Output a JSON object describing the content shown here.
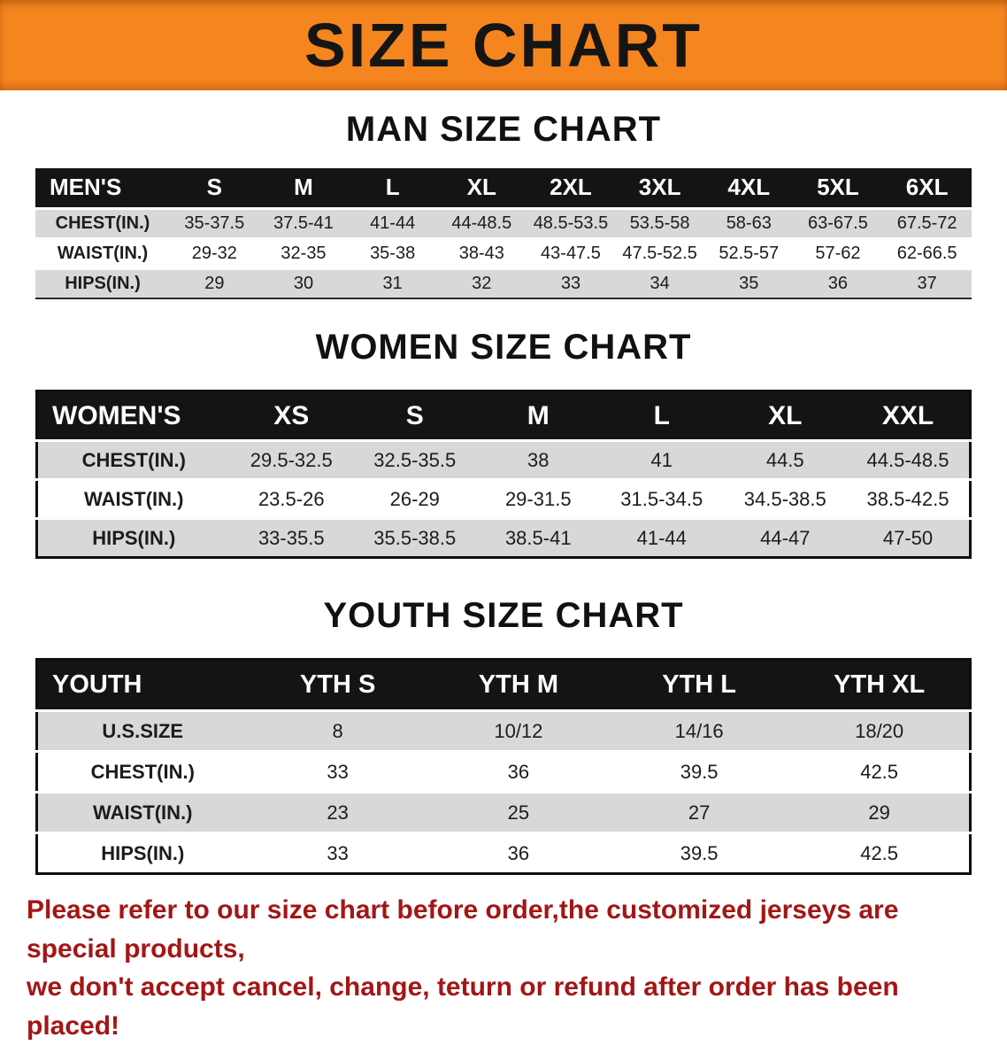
{
  "banner": {
    "title": "SIZE CHART"
  },
  "colors": {
    "banner_bg": "#f5851f",
    "header_row_bg": "#141414",
    "header_row_text": "#ffffff",
    "alt_row_bg": "#d8d8d8",
    "footer_text": "#a31616"
  },
  "men": {
    "heading": "MAN SIZE CHART",
    "table": {
      "header": [
        "MEN'S",
        "S",
        "M",
        "L",
        "XL",
        "2XL",
        "3XL",
        "4XL",
        "5XL",
        "6XL"
      ],
      "rows": [
        [
          "CHEST(IN.)",
          "35-37.5",
          "37.5-41",
          "41-44",
          "44-48.5",
          "48.5-53.5",
          "53.5-58",
          "58-63",
          "63-67.5",
          "67.5-72"
        ],
        [
          "WAIST(IN.)",
          "29-32",
          "32-35",
          "35-38",
          "38-43",
          "43-47.5",
          "47.5-52.5",
          "52.5-57",
          "57-62",
          "62-66.5"
        ],
        [
          "HIPS(IN.)",
          "29",
          "30",
          "31",
          "32",
          "33",
          "34",
          "35",
          "36",
          "37"
        ]
      ]
    }
  },
  "women": {
    "heading": "WOMEN SIZE CHART",
    "table": {
      "header": [
        "WOMEN'S",
        "XS",
        "S",
        "M",
        "L",
        "XL",
        "XXL"
      ],
      "rows": [
        [
          "CHEST(IN.)",
          "29.5-32.5",
          "32.5-35.5",
          "38",
          "41",
          "44.5",
          "44.5-48.5"
        ],
        [
          "WAIST(IN.)",
          "23.5-26",
          "26-29",
          "29-31.5",
          "31.5-34.5",
          "34.5-38.5",
          "38.5-42.5"
        ],
        [
          "HIPS(IN.)",
          "33-35.5",
          "35.5-38.5",
          "38.5-41",
          "41-44",
          "44-47",
          "47-50"
        ]
      ]
    }
  },
  "youth": {
    "heading": "YOUTH SIZE CHART",
    "table": {
      "header": [
        "YOUTH",
        "YTH S",
        "YTH M",
        "YTH L",
        "YTH XL"
      ],
      "rows": [
        [
          "U.S.SIZE",
          "8",
          "10/12",
          "14/16",
          "18/20"
        ],
        [
          "CHEST(IN.)",
          "33",
          "36",
          "39.5",
          "42.5"
        ],
        [
          "WAIST(IN.)",
          "23",
          "25",
          "27",
          "29"
        ],
        [
          "HIPS(IN.)",
          "33",
          "36",
          "39.5",
          "42.5"
        ]
      ]
    }
  },
  "footer": {
    "line1": "Please refer to our size chart before order,the customized jerseys are special products,",
    "line2": "we don't accept cancel, change, teturn or refund after order has been placed!"
  }
}
